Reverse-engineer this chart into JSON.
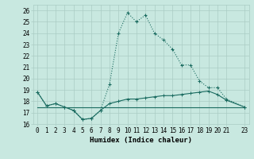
{
  "title": "",
  "xlabel": "Humidex (Indice chaleur)",
  "ylabel": "",
  "bg_color": "#c8e8e0",
  "grid_color": "#aaccc4",
  "line_color": "#1a6b60",
  "ylim": [
    16,
    26.5
  ],
  "xlim": [
    -0.5,
    23.5
  ],
  "yticks": [
    16,
    17,
    18,
    19,
    20,
    21,
    22,
    23,
    24,
    25,
    26
  ],
  "xticks": [
    0,
    1,
    2,
    3,
    4,
    5,
    6,
    7,
    8,
    9,
    10,
    11,
    12,
    13,
    14,
    15,
    16,
    17,
    18,
    19,
    20,
    21,
    23
  ],
  "line1_x": [
    0,
    1,
    2,
    3,
    4,
    5,
    6,
    7,
    8,
    9,
    10,
    11,
    12,
    13,
    14,
    15,
    16,
    17,
    18,
    19,
    20,
    21,
    23
  ],
  "line1_y": [
    18.8,
    17.6,
    17.8,
    17.5,
    17.2,
    16.4,
    16.5,
    17.2,
    19.5,
    24.0,
    25.8,
    25.0,
    25.6,
    24.0,
    23.4,
    22.6,
    21.2,
    21.2,
    19.8,
    19.2,
    19.2,
    18.2,
    17.5
  ],
  "line2_x": [
    0,
    1,
    2,
    3,
    4,
    5,
    6,
    7,
    8,
    9,
    10,
    11,
    12,
    13,
    14,
    15,
    16,
    17,
    18,
    19,
    20,
    21,
    23
  ],
  "line2_y": [
    18.8,
    17.6,
    17.8,
    17.5,
    17.2,
    16.4,
    16.5,
    17.2,
    17.8,
    18.0,
    18.2,
    18.2,
    18.3,
    18.4,
    18.5,
    18.5,
    18.6,
    18.7,
    18.8,
    18.9,
    18.6,
    18.1,
    17.5
  ],
  "line3_x": [
    0,
    23
  ],
  "line3_y": [
    17.5,
    17.5
  ],
  "font_size_label": 6.5,
  "font_size_tick": 5.5
}
